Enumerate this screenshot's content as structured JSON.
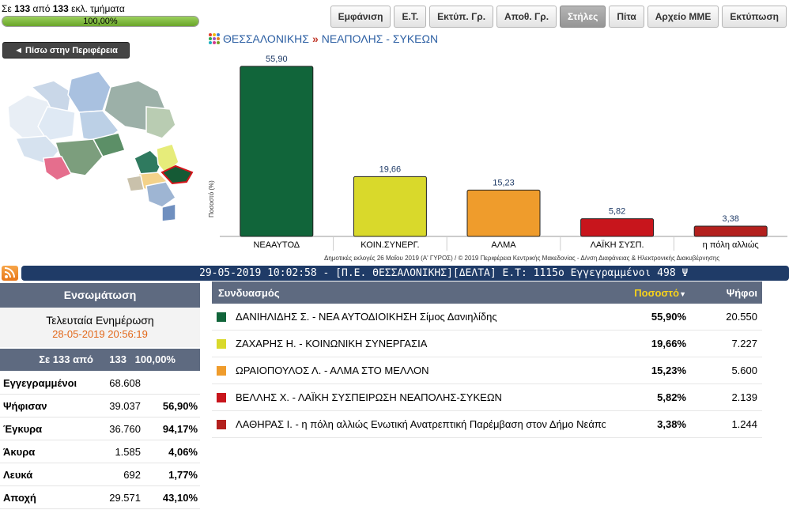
{
  "progress": {
    "prefix": "Σε",
    "counted": "133",
    "middle": "από",
    "total": "133",
    "suffix": "εκλ. τμήματα",
    "percent_label": "100,00%",
    "fraction": 1.0
  },
  "toolbar": {
    "buttons": [
      "Εμφάνιση",
      "Ε.Τ.",
      "Εκτύπ. Γρ.",
      "Αποθ. Γρ.",
      "Στήλες",
      "Πίτα",
      "Αρχείο ΜΜΕ",
      "Εκτύπωση"
    ],
    "active": "Στήλες"
  },
  "back_button": "◄ Πίσω στην Περιφέρεια",
  "breadcrumb": {
    "region": "ΘΕΣΣΑΛΟΝΙΚΗΣ",
    "separator": "»",
    "municipality": "ΝΕΑΠΟΛΗΣ - ΣΥΚΕΩΝ"
  },
  "chart_data": {
    "type": "bar",
    "categories": [
      "ΝΕΑΑΥΤΟΔ",
      "ΚΟΙΝ.ΣΥΝΕΡΓ.",
      "ΑΛΜΑ",
      "ΛΑΪΚΗ ΣΥΣΠ.",
      "η πόλη αλλιώς"
    ],
    "values": [
      55.9,
      19.66,
      15.23,
      5.82,
      3.38
    ],
    "value_labels": [
      "55,90",
      "19,66",
      "15,23",
      "5,82",
      "3,38"
    ],
    "colors": [
      "#11653a",
      "#d9d92b",
      "#ef9c2c",
      "#c8151c",
      "#b3201d"
    ],
    "ylabel": "Ποσοστό (%)",
    "ylim": [
      0,
      60
    ],
    "grid": false
  },
  "chart_footnote": "Δημοτικές εκλογές 26 Μαΐου 2019 (Α' ΓΥΡΟΣ) / © 2019 Περιφέρεια Κεντρικής Μακεδονίας - Δ/νση Διαφάνειας & Ηλεκτρονικής Διακυβέρνησης",
  "ticker_text": "29-05-2019 10:02:58 - [Π.Ε. ΘΕΣΣΑΛΟΝΙΚΗΣ][ΔΕΛΤΑ]  Ε.Τ: 1115ο  Εγγεγραμμένοι 498  Ψ",
  "summary": {
    "header": "Ενσωμάτωση",
    "last_update_title": "Τελευταία Ενημέρωση",
    "last_update_time": "28-05-2019 20:56:19",
    "sections": {
      "prefix": "Σε 133 από",
      "total": "133",
      "percent": "100,00%"
    },
    "rows": [
      {
        "label": "Εγγεγραμμένοι",
        "value": "68.608",
        "percent": ""
      },
      {
        "label": "Ψήφισαν",
        "value": "39.037",
        "percent": "56,90%"
      },
      {
        "label": "Έγκυρα",
        "value": "36.760",
        "percent": "94,17%"
      },
      {
        "label": "Άκυρα",
        "value": "1.585",
        "percent": "4,06%"
      },
      {
        "label": "Λευκά",
        "value": "692",
        "percent": "1,77%"
      },
      {
        "label": "Αποχή",
        "value": "29.571",
        "percent": "43,10%"
      }
    ]
  },
  "results": {
    "headers": {
      "name": "Συνδυασμός",
      "percent": "Ποσοστό",
      "sort_indicator": "▼",
      "votes": "Ψήφοι"
    },
    "rows": [
      {
        "name": "ΔΑΝΙΗΛΙΔΗΣ Σ. - ΝΕΑ ΑΥΤΟΔΙΟΙΚΗΣΗ Σίμος Δανιηλίδης",
        "percent": "55,90%",
        "votes": "20.550",
        "color": "#11653a"
      },
      {
        "name": "ΖΑΧΑΡΗΣ Η. - ΚΟΙΝΩΝΙΚΗ ΣΥΝΕΡΓΑΣΙΑ",
        "percent": "19,66%",
        "votes": "7.227",
        "color": "#d9d92b"
      },
      {
        "name": "ΩΡΑΙΟΠΟΥΛΟΣ Λ. - ΑΛΜΑ ΣΤΟ ΜΕΛΛΟΝ",
        "percent": "15,23%",
        "votes": "5.600",
        "color": "#ef9c2c"
      },
      {
        "name": "ΒΕΛΛΗΣ Χ. - ΛΑΪΚΗ ΣΥΣΠΕΙΡΩΣΗ ΝΕΑΠΟΛΗΣ-ΣΥΚΕΩΝ",
        "percent": "5,82%",
        "votes": "2.139",
        "color": "#c8151c"
      },
      {
        "name": "ΛΑΘΗΡΑΣ Ι. - η πόλη αλλιώς Ενωτική Ανατρεπτική Παρέμβαση στον Δήμο Νεάπολης Σ",
        "percent": "3,38%",
        "votes": "1.244",
        "color": "#b3201d"
      }
    ]
  }
}
